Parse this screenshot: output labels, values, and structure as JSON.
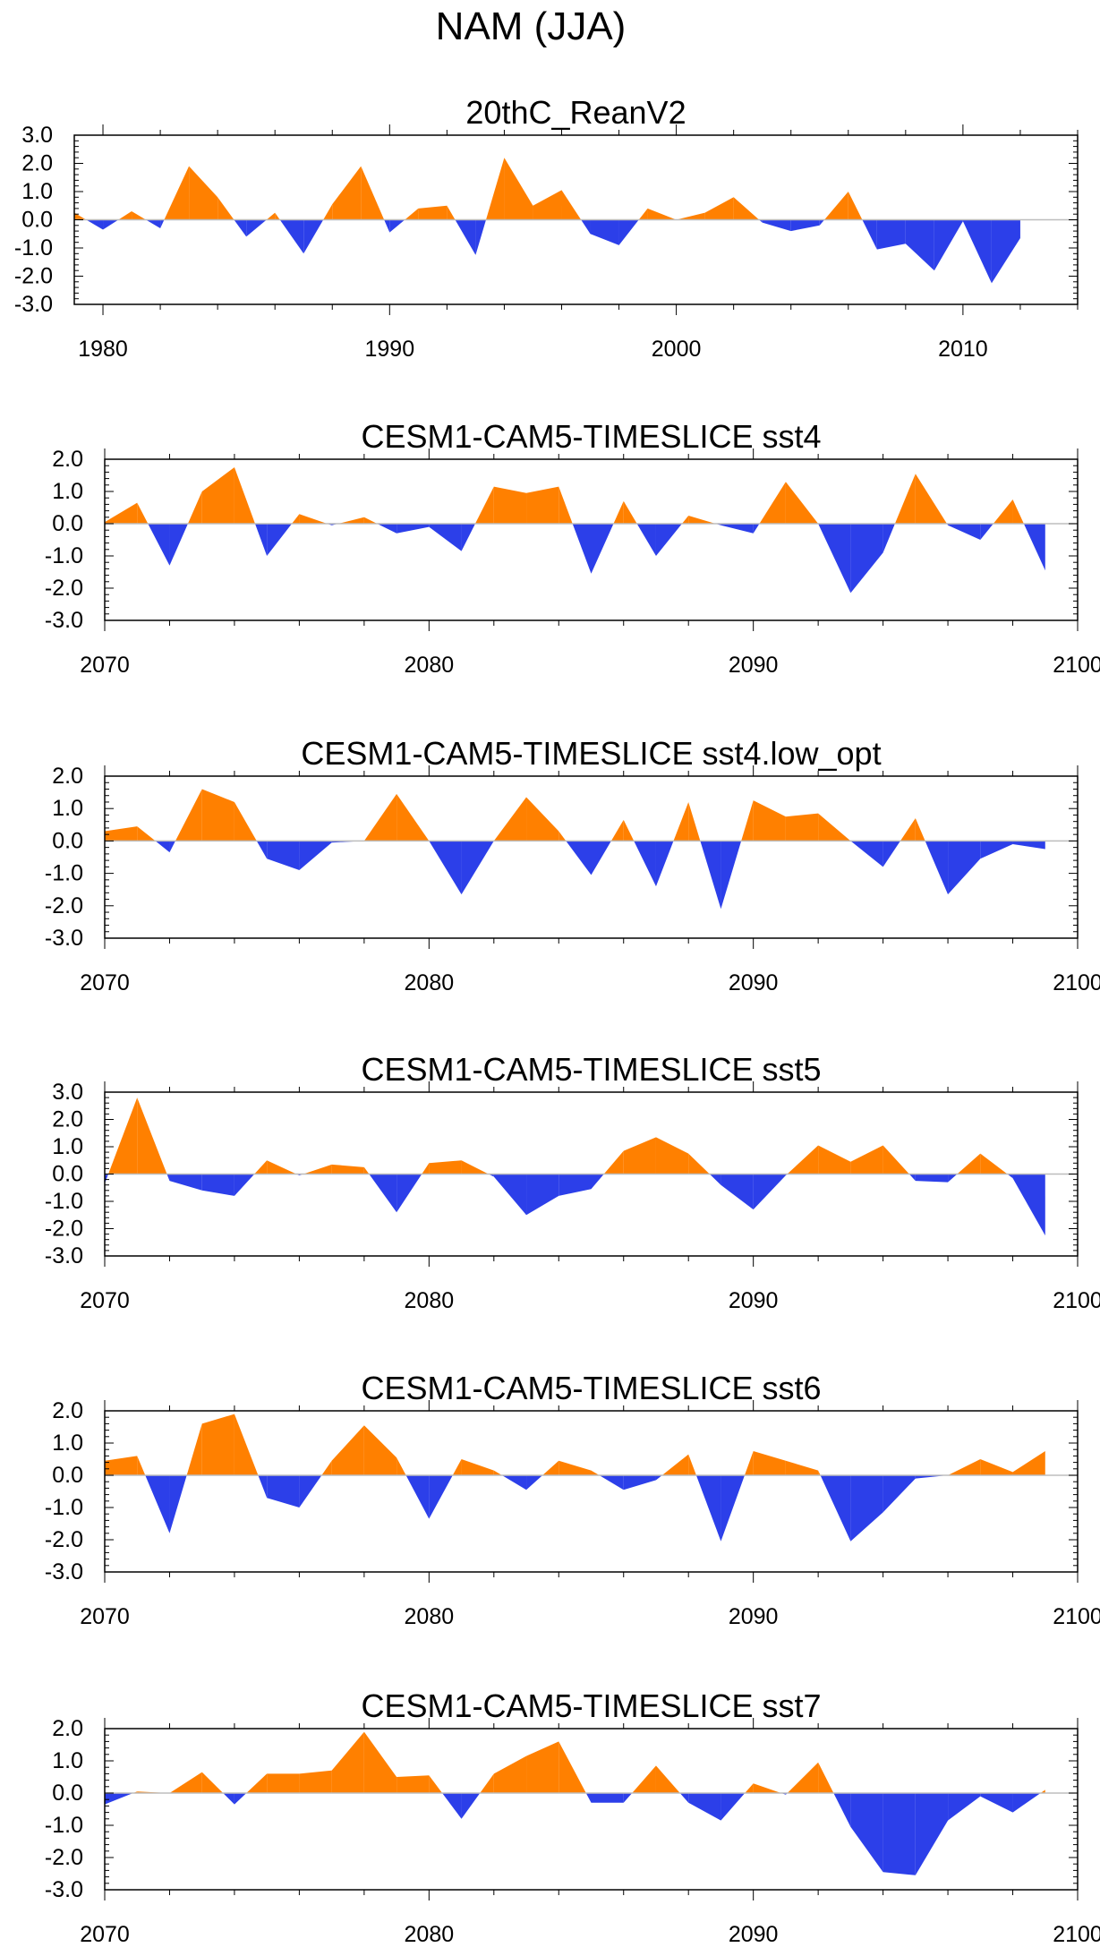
{
  "figure": {
    "title": "NAM (JJA)",
    "colors": {
      "positive": "#ff8000",
      "negative": "#2c3fe9",
      "axis": "#000000",
      "zero_line": "#bdbdbd"
    }
  },
  "chart_data": [
    {
      "type": "area",
      "title": "20thC_ReanV2",
      "xlim": [
        1979,
        2014
      ],
      "ylim": [
        -3.0,
        3.0
      ],
      "yticks": [
        3.0,
        2.0,
        1.0,
        0.0,
        -1.0,
        -2.0,
        -3.0
      ],
      "ytick_labels": [
        "3.0",
        "2.0",
        "1.0",
        "0.0",
        "-1.0",
        "-2.0",
        "-3.0"
      ],
      "xticks": [
        1980,
        1990,
        2000,
        2010
      ],
      "xtick_labels": [
        "1980",
        "1990",
        "2000",
        "2010"
      ],
      "x_start": 1979,
      "values": [
        0.25,
        -0.35,
        0.3,
        -0.3,
        1.9,
        0.8,
        -0.6,
        0.25,
        -1.2,
        0.55,
        1.9,
        -0.45,
        0.4,
        0.5,
        -1.25,
        2.2,
        0.5,
        1.05,
        -0.5,
        -0.9,
        0.4,
        0.0,
        0.25,
        0.8,
        -0.1,
        -0.4,
        -0.2,
        1.0,
        -1.05,
        -0.85,
        -1.8,
        -0.05,
        -2.25,
        -0.65
      ]
    },
    {
      "type": "area",
      "title": "CESM1-CAM5-TIMESLICE sst4",
      "xlim": [
        2070,
        2100
      ],
      "ylim": [
        -3.0,
        2.0
      ],
      "yticks": [
        2.0,
        1.0,
        0.0,
        -1.0,
        -2.0,
        -3.0
      ],
      "ytick_labels": [
        "2.0",
        "1.0",
        "0.0",
        "-1.0",
        "-2.0",
        "-3.0"
      ],
      "xticks": [
        2070,
        2080,
        2090,
        2100
      ],
      "xtick_labels": [
        "2070",
        "2080",
        "2090",
        "2100"
      ],
      "x_start": 2070,
      "values": [
        0.05,
        0.65,
        -1.3,
        1.0,
        1.75,
        -1.0,
        0.3,
        -0.05,
        0.2,
        -0.3,
        -0.1,
        -0.85,
        1.15,
        0.95,
        1.15,
        -1.55,
        0.7,
        -1.0,
        0.25,
        -0.05,
        -0.3,
        1.3,
        0.0,
        -2.15,
        -0.9,
        1.55,
        -0.05,
        -0.5,
        0.75,
        -1.45
      ]
    },
    {
      "type": "area",
      "title": "CESM1-CAM5-TIMESLICE sst4.low_opt",
      "xlim": [
        2070,
        2100
      ],
      "ylim": [
        -3.0,
        2.0
      ],
      "yticks": [
        2.0,
        1.0,
        0.0,
        -1.0,
        -2.0,
        -3.0
      ],
      "ytick_labels": [
        "2.0",
        "1.0",
        "0.0",
        "-1.0",
        "-2.0",
        "-3.0"
      ],
      "xticks": [
        2070,
        2080,
        2090,
        2100
      ],
      "xtick_labels": [
        "2070",
        "2080",
        "2090",
        "2100"
      ],
      "x_start": 2070,
      "values": [
        0.3,
        0.45,
        -0.35,
        1.6,
        1.2,
        -0.55,
        -0.9,
        -0.05,
        0.0,
        1.45,
        0.0,
        -1.65,
        0.0,
        1.35,
        0.3,
        -1.05,
        0.65,
        -1.4,
        1.2,
        -2.1,
        1.25,
        0.75,
        0.85,
        0.0,
        -0.8,
        0.7,
        -1.65,
        -0.55,
        -0.1,
        -0.25
      ]
    },
    {
      "type": "area",
      "title": "CESM1-CAM5-TIMESLICE sst5",
      "xlim": [
        2070,
        2100
      ],
      "ylim": [
        -3.0,
        3.0
      ],
      "yticks": [
        3.0,
        2.0,
        1.0,
        0.0,
        -1.0,
        -2.0,
        -3.0
      ],
      "ytick_labels": [
        "3.0",
        "2.0",
        "1.0",
        "0.0",
        "-1.0",
        "-2.0",
        "-3.0"
      ],
      "xticks": [
        2070,
        2080,
        2090,
        2100
      ],
      "xtick_labels": [
        "2070",
        "2080",
        "2090",
        "2100"
      ],
      "x_start": 2070,
      "values": [
        -0.35,
        2.8,
        -0.25,
        -0.6,
        -0.8,
        0.5,
        -0.05,
        0.35,
        0.25,
        -1.4,
        0.4,
        0.5,
        -0.1,
        -1.5,
        -0.8,
        -0.55,
        0.85,
        1.35,
        0.75,
        -0.4,
        -1.3,
        -0.05,
        1.05,
        0.45,
        1.05,
        -0.25,
        -0.3,
        0.75,
        -0.15,
        -2.25
      ]
    },
    {
      "type": "area",
      "title": "CESM1-CAM5-TIMESLICE sst6",
      "xlim": [
        2070,
        2100
      ],
      "ylim": [
        -3.0,
        2.0
      ],
      "yticks": [
        2.0,
        1.0,
        0.0,
        -1.0,
        -2.0,
        -3.0
      ],
      "ytick_labels": [
        "2.0",
        "1.0",
        "0.0",
        "-1.0",
        "-2.0",
        "-3.0"
      ],
      "xticks": [
        2070,
        2080,
        2090,
        2100
      ],
      "xtick_labels": [
        "2070",
        "2080",
        "2090",
        "2100"
      ],
      "x_start": 2070,
      "values": [
        0.45,
        0.6,
        -1.8,
        1.6,
        1.9,
        -0.7,
        -1.0,
        0.45,
        1.55,
        0.55,
        -1.35,
        0.5,
        0.15,
        -0.45,
        0.45,
        0.15,
        -0.45,
        -0.15,
        0.65,
        -2.05,
        0.75,
        0.45,
        0.15,
        -2.05,
        -1.15,
        -0.1,
        0.0,
        0.5,
        0.1,
        0.75
      ]
    },
    {
      "type": "area",
      "title": "CESM1-CAM5-TIMESLICE sst7",
      "xlim": [
        2070,
        2100
      ],
      "ylim": [
        -3.0,
        2.0
      ],
      "yticks": [
        2.0,
        1.0,
        0.0,
        -1.0,
        -2.0,
        -3.0
      ],
      "ytick_labels": [
        "2.0",
        "1.0",
        "0.0",
        "-1.0",
        "-2.0",
        "-3.0"
      ],
      "xticks": [
        2070,
        2080,
        2090,
        2100
      ],
      "xtick_labels": [
        "2070",
        "2080",
        "2090",
        "2100"
      ],
      "x_start": 2070,
      "values": [
        -0.35,
        0.05,
        0.0,
        0.65,
        -0.35,
        0.6,
        0.6,
        0.7,
        1.9,
        0.5,
        0.55,
        -0.8,
        0.6,
        1.15,
        1.6,
        -0.3,
        -0.3,
        0.85,
        -0.3,
        -0.85,
        0.3,
        -0.05,
        0.95,
        -1.05,
        -2.45,
        -2.55,
        -0.85,
        -0.1,
        -0.6,
        0.1
      ]
    }
  ]
}
